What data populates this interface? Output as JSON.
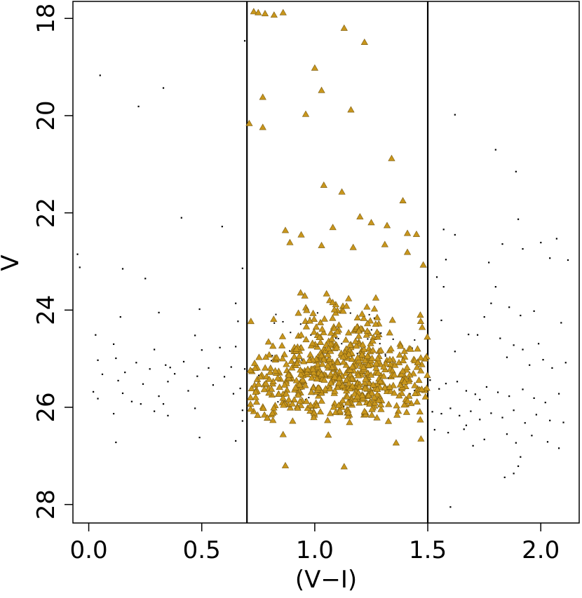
{
  "chart_data": {
    "type": "scatter",
    "title": "",
    "xlabel": "(V−I)",
    "ylabel": "V",
    "xlim": [
      -0.07,
      2.17
    ],
    "ylim": [
      28.38,
      17.65
    ],
    "y_inverted": true,
    "xticks": [
      0.0,
      0.5,
      1.0,
      1.5,
      2.0
    ],
    "xtick_labels": [
      "0.0",
      "0.5",
      "1.0",
      "1.5",
      "2.0"
    ],
    "yticks": [
      18,
      20,
      22,
      24,
      26,
      28
    ],
    "ytick_labels": [
      "18",
      "20",
      "22",
      "24",
      "26",
      "28"
    ],
    "grid": false,
    "legend": "none",
    "vertical_lines": [
      0.7,
      1.5
    ],
    "colors": {
      "selected_marker": "#c8961c",
      "selected_edge": "#7a5a10",
      "dot": "#000000",
      "axis": "#000000"
    },
    "series": [
      {
        "marker": "dot",
        "points": [
          [
            -0.05,
            22.85
          ],
          [
            -0.04,
            23.12
          ],
          [
            0.05,
            19.17
          ],
          [
            0.33,
            19.43
          ],
          [
            0.22,
            19.81
          ],
          [
            0.41,
            22.1
          ],
          [
            0.59,
            22.28
          ],
          [
            0.15,
            23.15
          ],
          [
            0.25,
            23.35
          ],
          [
            0.14,
            24.14
          ],
          [
            0.03,
            24.51
          ],
          [
            0.11,
            24.7
          ],
          [
            0.29,
            24.81
          ],
          [
            0.47,
            24.52
          ],
          [
            0.5,
            24.82
          ],
          [
            0.58,
            24.77
          ],
          [
            0.65,
            24.75
          ],
          [
            0.04,
            25.03
          ],
          [
            0.12,
            24.99
          ],
          [
            0.21,
            25.08
          ],
          [
            0.34,
            25.13
          ],
          [
            0.42,
            25.06
          ],
          [
            0.53,
            25.19
          ],
          [
            0.63,
            25.17
          ],
          [
            0.69,
            25.21
          ],
          [
            0.06,
            25.32
          ],
          [
            0.16,
            25.28
          ],
          [
            0.27,
            25.21
          ],
          [
            0.38,
            25.31
          ],
          [
            0.48,
            25.36
          ],
          [
            0.6,
            25.37
          ],
          [
            0.13,
            25.45
          ],
          [
            0.24,
            25.52
          ],
          [
            0.35,
            25.47
          ],
          [
            0.55,
            25.54
          ],
          [
            0.67,
            25.61
          ],
          [
            0.02,
            25.68
          ],
          [
            0.15,
            25.71
          ],
          [
            0.31,
            25.77
          ],
          [
            0.44,
            25.66
          ],
          [
            0.64,
            25.72
          ],
          [
            0.04,
            25.82
          ],
          [
            0.19,
            25.88
          ],
          [
            0.33,
            25.93
          ],
          [
            0.47,
            26.02
          ],
          [
            0.68,
            26.06
          ],
          [
            0.11,
            26.13
          ],
          [
            0.35,
            26.17
          ],
          [
            0.68,
            26.28
          ],
          [
            0.12,
            26.72
          ],
          [
            0.49,
            26.62
          ],
          [
            0.65,
            26.69
          ],
          [
            0.68,
            23.14
          ],
          [
            0.65,
            23.86
          ],
          [
            0.66,
            24.23
          ],
          [
            0.31,
            24.05
          ],
          [
            0.49,
            23.98
          ],
          [
            0.36,
            25.18
          ],
          [
            0.23,
            25.93
          ],
          [
            0.29,
            26.08
          ],
          [
            0.69,
            18.46
          ],
          [
            1.62,
            19.98
          ],
          [
            1.8,
            20.7
          ],
          [
            1.89,
            21.15
          ],
          [
            1.57,
            22.34
          ],
          [
            1.62,
            22.45
          ],
          [
            1.58,
            22.96
          ],
          [
            1.54,
            23.32
          ],
          [
            1.57,
            23.52
          ],
          [
            1.56,
            24.21
          ],
          [
            1.62,
            24.85
          ],
          [
            1.68,
            24.5
          ],
          [
            1.72,
            24.51
          ],
          [
            1.77,
            23.02
          ],
          [
            1.83,
            22.64
          ],
          [
            1.9,
            22.13
          ],
          [
            1.92,
            22.74
          ],
          [
            2.0,
            22.61
          ],
          [
            2.04,
            22.93
          ],
          [
            2.07,
            22.53
          ],
          [
            2.12,
            22.97
          ],
          [
            1.78,
            23.86
          ],
          [
            1.86,
            23.94
          ],
          [
            1.91,
            24.11
          ],
          [
            1.97,
            24.02
          ],
          [
            2.09,
            24.26
          ],
          [
            1.85,
            24.97
          ],
          [
            1.88,
            24.72
          ],
          [
            1.92,
            24.81
          ],
          [
            1.95,
            25.13
          ],
          [
            2.01,
            25.02
          ],
          [
            2.05,
            25.19
          ],
          [
            2.11,
            25.08
          ],
          [
            1.51,
            25.44
          ],
          [
            1.55,
            25.62
          ],
          [
            1.58,
            25.51
          ],
          [
            1.63,
            25.47
          ],
          [
            1.67,
            25.66
          ],
          [
            1.71,
            25.73
          ],
          [
            1.76,
            25.58
          ],
          [
            1.81,
            25.69
          ],
          [
            1.86,
            25.77
          ],
          [
            1.92,
            25.63
          ],
          [
            1.97,
            25.81
          ],
          [
            2.02,
            25.9
          ],
          [
            2.08,
            25.72
          ],
          [
            1.52,
            26.09
          ],
          [
            1.56,
            26.13
          ],
          [
            1.6,
            26.02
          ],
          [
            1.64,
            26.17
          ],
          [
            1.69,
            26.08
          ],
          [
            1.73,
            26.25
          ],
          [
            1.78,
            26.12
          ],
          [
            1.83,
            26.21
          ],
          [
            1.88,
            26.06
          ],
          [
            1.93,
            26.32
          ],
          [
            1.98,
            26.15
          ],
          [
            2.04,
            26.27
          ],
          [
            2.1,
            26.31
          ],
          [
            1.53,
            26.46
          ],
          [
            1.59,
            26.52
          ],
          [
            1.66,
            26.45
          ],
          [
            1.75,
            26.66
          ],
          [
            1.85,
            26.55
          ],
          [
            1.89,
            26.73
          ],
          [
            1.96,
            26.58
          ],
          [
            2.03,
            26.71
          ],
          [
            2.08,
            26.84
          ],
          [
            1.91,
            27.02
          ],
          [
            1.9,
            27.21
          ],
          [
            1.88,
            27.36
          ],
          [
            1.84,
            27.44
          ],
          [
            1.7,
            26.79
          ],
          [
            1.6,
            28.05
          ],
          [
            1.67,
            26.37
          ],
          [
            1.73,
            25.84
          ],
          [
            1.82,
            24.58
          ],
          [
            1.99,
            24.69
          ],
          [
            1.8,
            23.52
          ],
          [
            1.75,
            24.14
          ]
        ]
      },
      {
        "marker": "triangle",
        "points": [
          [
            0.73,
            17.86
          ],
          [
            0.75,
            17.88
          ],
          [
            0.78,
            17.9
          ],
          [
            0.82,
            17.93
          ],
          [
            0.86,
            17.88
          ],
          [
            1.13,
            18.2
          ],
          [
            1.22,
            18.49
          ],
          [
            1.0,
            19.02
          ],
          [
            1.03,
            19.48
          ],
          [
            0.96,
            19.97
          ],
          [
            1.16,
            19.88
          ],
          [
            0.77,
            19.62
          ],
          [
            0.71,
            20.16
          ],
          [
            0.77,
            20.24
          ],
          [
            1.34,
            20.88
          ],
          [
            1.04,
            21.43
          ],
          [
            1.12,
            21.57
          ],
          [
            1.39,
            21.75
          ],
          [
            1.41,
            22.42
          ],
          [
            1.32,
            22.26
          ],
          [
            1.2,
            22.08
          ],
          [
            0.87,
            22.36
          ],
          [
            0.94,
            22.45
          ],
          [
            1.08,
            22.3
          ],
          [
            1.25,
            22.2
          ],
          [
            1.45,
            22.44
          ],
          [
            0.89,
            22.61
          ],
          [
            1.03,
            22.67
          ],
          [
            1.17,
            22.71
          ],
          [
            1.31,
            22.65
          ],
          [
            1.41,
            22.81
          ],
          [
            1.48,
            23.07
          ]
        ],
        "cluster": {
          "count": 640,
          "x_range": [
            0.71,
            1.5
          ],
          "y_range": [
            23.1,
            26.35
          ],
          "center": [
            1.02,
            25.05
          ]
        },
        "outliers": [
          [
            0.87,
            27.2
          ],
          [
            1.13,
            27.22
          ],
          [
            1.06,
            26.57
          ],
          [
            0.86,
            26.56
          ],
          [
            1.36,
            26.73
          ],
          [
            1.47,
            26.65
          ],
          [
            0.79,
            26.22
          ]
        ]
      }
    ]
  }
}
